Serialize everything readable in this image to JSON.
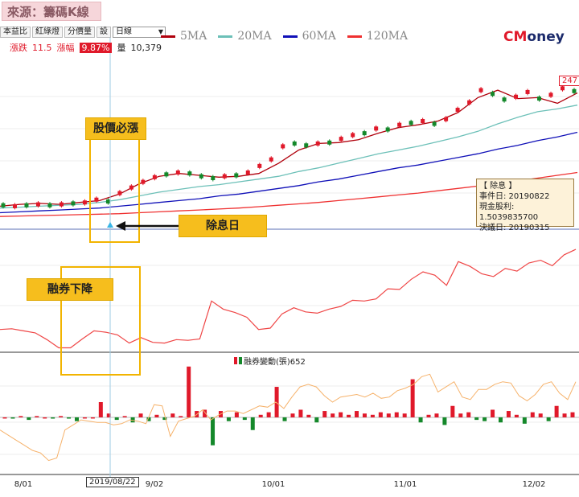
{
  "header": {
    "source_label": "來源：籌碼K線",
    "brand_part1": "CM",
    "brand_part2": "oney",
    "colors": {
      "brand_red": "#e0192a",
      "brand_navy": "#1b2a6b"
    }
  },
  "toolbar": {
    "buttons": [
      "本益比",
      "紅綠燈",
      "分價量",
      "設"
    ],
    "period_select": "日線"
  },
  "legend": [
    {
      "label": "5MA",
      "color": "#b0000c"
    },
    {
      "label": "20MA",
      "color": "#6cc0b8"
    },
    {
      "label": "60MA",
      "color": "#1010b8"
    },
    {
      "label": "120MA",
      "color": "#ef3030"
    }
  ],
  "quote": {
    "change_label": "漲跌",
    "change_value": "11.5",
    "pct_label": "漲幅",
    "pct_value": "9.87%",
    "volume_label": "量",
    "volume_value": "10,379"
  },
  "price_tag": "247",
  "annotations": {
    "price_surge": "股價必漲",
    "ex_dividend_day": "除息日",
    "short_decline": "融券下降"
  },
  "info_box": {
    "title": "【 除息 】",
    "event_date": "事件日: 20190822",
    "cash_dividend": "現金股利: 1.5039835700",
    "resolution_date": "決議日: 20190315"
  },
  "volume_panel_label": "融券變動(張)652",
  "selected_date": "2019/08/22",
  "chart_data": [
    {
      "type": "line",
      "panel": "price",
      "x_ticks": [
        "8/01",
        "9/02",
        "10/01",
        "11/01",
        "12/02"
      ],
      "series": [
        {
          "name": "5MA",
          "color": "#b0000c",
          "values": [
            0.2,
            0.4,
            0.5,
            0.4,
            0.6,
            0.8,
            1.5,
            2.6,
            3.4,
            3.7,
            3.5,
            3.3,
            3.4,
            3.7,
            4.8,
            6.2,
            6.9,
            7.0,
            7.3,
            8.0,
            8.6,
            8.9,
            9.3,
            10.2,
            11.8,
            12.6,
            11.7,
            11.8,
            11.2,
            12.3
          ]
        },
        {
          "name": "20MA",
          "color": "#6cc0b8",
          "values": [
            0.0,
            0.1,
            0.2,
            0.3,
            0.4,
            0.6,
            0.9,
            1.3,
            1.7,
            2.0,
            2.3,
            2.5,
            2.8,
            3.1,
            3.4,
            3.9,
            4.3,
            4.8,
            5.3,
            5.8,
            6.2,
            6.6,
            7.1,
            7.6,
            8.2,
            9.0,
            9.7,
            10.3,
            10.6,
            11.0
          ]
        },
        {
          "name": "60MA",
          "color": "#1010b8",
          "values": [
            -0.5,
            -0.4,
            -0.3,
            -0.2,
            -0.1,
            0.0,
            0.2,
            0.4,
            0.6,
            0.8,
            1.0,
            1.3,
            1.5,
            1.8,
            2.1,
            2.4,
            2.8,
            3.1,
            3.5,
            3.9,
            4.3,
            4.6,
            5.0,
            5.4,
            5.8,
            6.3,
            6.7,
            7.2,
            7.6,
            8.1
          ]
        },
        {
          "name": "120MA",
          "color": "#ef3030",
          "values": [
            -0.9,
            -0.85,
            -0.8,
            -0.75,
            -0.7,
            -0.65,
            -0.6,
            -0.5,
            -0.4,
            -0.3,
            -0.2,
            -0.1,
            0.0,
            0.15,
            0.3,
            0.45,
            0.6,
            0.8,
            1.0,
            1.2,
            1.4,
            1.6,
            1.85,
            2.1,
            2.35,
            2.6,
            2.9,
            3.2,
            3.5,
            3.8
          ]
        }
      ],
      "candles": [
        {
          "v": 0.3,
          "up": false
        },
        {
          "v": 0.2,
          "up": true
        },
        {
          "v": 0.3,
          "up": false
        },
        {
          "v": 0.4,
          "up": true
        },
        {
          "v": 0.3,
          "up": false
        },
        {
          "v": 0.4,
          "up": true
        },
        {
          "v": 0.5,
          "up": false
        },
        {
          "v": 0.6,
          "up": true
        },
        {
          "v": 0.9,
          "up": true
        },
        {
          "v": 0.7,
          "up": false
        },
        {
          "v": 1.6,
          "up": true
        },
        {
          "v": 2.2,
          "up": true
        },
        {
          "v": 2.8,
          "up": true
        },
        {
          "v": 3.3,
          "up": true
        },
        {
          "v": 3.6,
          "up": false
        },
        {
          "v": 3.8,
          "up": true
        },
        {
          "v": 3.7,
          "up": false
        },
        {
          "v": 3.4,
          "up": false
        },
        {
          "v": 3.2,
          "up": false
        },
        {
          "v": 3.4,
          "up": true
        },
        {
          "v": 3.5,
          "up": false
        },
        {
          "v": 3.8,
          "up": true
        },
        {
          "v": 4.5,
          "up": true
        },
        {
          "v": 5.2,
          "up": true
        },
        {
          "v": 6.6,
          "up": true
        },
        {
          "v": 6.9,
          "up": false
        },
        {
          "v": 6.7,
          "up": false
        },
        {
          "v": 6.9,
          "up": true
        },
        {
          "v": 7.0,
          "up": false
        },
        {
          "v": 7.4,
          "up": true
        },
        {
          "v": 7.8,
          "up": true
        },
        {
          "v": 8.0,
          "up": false
        },
        {
          "v": 8.5,
          "up": true
        },
        {
          "v": 8.4,
          "up": false
        },
        {
          "v": 8.9,
          "up": true
        },
        {
          "v": 9.1,
          "up": false
        },
        {
          "v": 9.3,
          "up": true
        },
        {
          "v": 9.0,
          "up": false
        },
        {
          "v": 9.5,
          "up": true
        },
        {
          "v": 10.5,
          "up": true
        },
        {
          "v": 11.3,
          "up": true
        },
        {
          "v": 12.6,
          "up": true
        },
        {
          "v": 12.2,
          "up": false
        },
        {
          "v": 11.6,
          "up": false
        },
        {
          "v": 11.9,
          "up": true
        },
        {
          "v": 12.4,
          "up": true
        },
        {
          "v": 11.7,
          "up": false
        },
        {
          "v": 12.1,
          "up": true
        },
        {
          "v": 12.8,
          "up": true
        },
        {
          "v": 12.5,
          "up": false
        }
      ]
    },
    {
      "type": "line",
      "panel": "short_balance",
      "series": [
        {
          "name": "",
          "color": "#ef4545",
          "values": [
            3,
            3.1,
            2.8,
            2.5,
            1.5,
            0.3,
            0.3,
            1.6,
            2.8,
            2.6,
            2.2,
            1.0,
            1.8,
            1.1,
            1.0,
            1.5,
            1.4,
            1.6,
            7.2,
            6.0,
            5.5,
            4.8,
            3.0,
            3.2,
            5.3,
            6.2,
            5.6,
            5.4,
            6.0,
            6.4,
            7.3,
            7.2,
            7.5,
            9.0,
            8.9,
            10.4,
            11.5,
            11.0,
            9.5,
            13.0,
            12.3,
            11.2,
            10.8,
            12.0,
            11.6,
            12.8,
            13.2,
            12.4,
            14.0,
            14.8
          ]
        }
      ]
    },
    {
      "type": "bar",
      "panel": "short_change",
      "series": [
        {
          "name": "融券變動(張)",
          "values": [
            0.0,
            -0.1,
            0.1,
            -0.2,
            0.1,
            0.0,
            -0.1,
            0.1,
            -0.1,
            -0.3,
            0.0,
            0.0,
            1.2,
            0.3,
            -0.2,
            0.1,
            -0.4,
            0.3,
            -0.3,
            0.2,
            -0.2,
            0.3,
            0.1,
            4.0,
            0.5,
            0.6,
            -2.2,
            0.5,
            -0.3,
            0.4,
            -0.2,
            -1.0,
            0.2,
            0.4,
            2.4,
            -0.3,
            0.3,
            0.6,
            0.2,
            -0.4,
            0.5,
            0.3,
            0.4,
            0.2,
            0.5,
            0.3,
            0.2,
            0.4,
            0.3,
            0.4,
            0.3,
            3.0,
            -0.4,
            0.2,
            0.3,
            -0.6,
            0.9,
            0.3,
            0.4,
            -0.2,
            -0.3,
            0.6,
            -0.4,
            0.5,
            0.2,
            -0.5,
            0.4,
            0.3,
            -0.3,
            0.9,
            0.3,
            0.4
          ]
        }
      ],
      "overlay_line": {
        "color": "#f6b26b",
        "values": [
          -1.0,
          -1.4,
          -1.8,
          -2.2,
          -2.6,
          -2.8,
          -3.4,
          -3.2,
          -1.0,
          -0.6,
          -0.2,
          -0.3,
          -0.4,
          -0.4,
          -0.6,
          -0.5,
          -0.2,
          -0.3,
          -0.5,
          1.0,
          0.9,
          -1.5,
          -0.3,
          -0.1,
          0.1,
          0.6,
          -0.2,
          0.2,
          0.5,
          0.5,
          0.3,
          0.6,
          0.9,
          0.8,
          1.2,
          0.7,
          1.6,
          2.4,
          2.6,
          2.4,
          1.7,
          1.2,
          1.6,
          1.7,
          1.8,
          1.6,
          1.9,
          1.5,
          1.6,
          2.1,
          2.3,
          2.6,
          3.2,
          3.4,
          2.0,
          2.4,
          2.8,
          1.6,
          1.4,
          2.2,
          2.2,
          2.6,
          2.8,
          2.7,
          1.7,
          1.3,
          1.8,
          2.6,
          2.8,
          1.9,
          1.4,
          2.8
        ]
      }
    }
  ]
}
